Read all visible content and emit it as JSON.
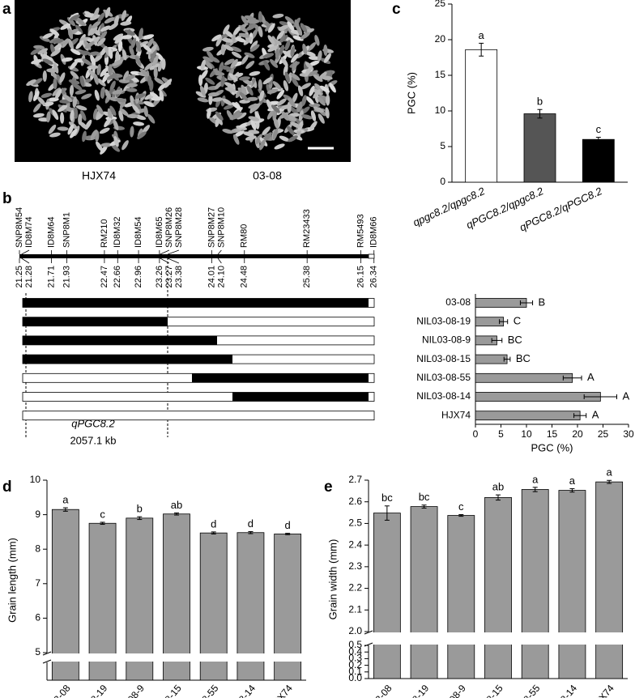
{
  "panel_labels": [
    "a",
    "b",
    "c",
    "d",
    "e"
  ],
  "photo": {
    "labels": [
      "HJX74",
      "03-08"
    ]
  },
  "genetic_map": {
    "markers": [
      {
        "name": "SNP8M54",
        "position": "21.25"
      },
      {
        "name": "ID8M74",
        "position": "21.28"
      },
      {
        "name": "ID8M64",
        "position": "21.71"
      },
      {
        "name": "SNP8M1",
        "position": "21.93"
      },
      {
        "name": "RM210",
        "position": "22.47"
      },
      {
        "name": "ID8M32",
        "position": "22.66"
      },
      {
        "name": "ID8M54",
        "position": "22.96"
      },
      {
        "name": "ID8M65",
        "position": "23.26"
      },
      {
        "name": "SNP8M26",
        "position": "23.27"
      },
      {
        "name": "SNP8M28",
        "position": "23.38"
      },
      {
        "name": "SNP8M27",
        "position": "24.01"
      },
      {
        "name": "SNP8M10",
        "position": "24.10"
      },
      {
        "name": "RM80",
        "position": "24.48"
      },
      {
        "name": "RM23433",
        "position": "25.38"
      },
      {
        "name": "RM5493",
        "position": "26.15"
      },
      {
        "name": "ID8M66",
        "position": "26.34"
      }
    ],
    "qtl": "qPGC8.2",
    "interval": "2057.1 kb"
  },
  "chart_data": [
    {
      "type": "bar",
      "categories": [
        "qpgc8.2/qpgc8.2",
        "qPGC8.2/qpgc8.2",
        "qPGC8.2/qPGC8.2"
      ],
      "values": [
        18.6,
        9.6,
        6.0
      ],
      "errors": [
        0.9,
        0.6,
        0.3
      ],
      "significance": [
        "a",
        "b",
        "c"
      ],
      "colors": [
        "#ffffff",
        "#555555",
        "#000000"
      ],
      "ylabel": "PGC (%)",
      "ylim": [
        0,
        25
      ],
      "yticks": [
        0,
        5,
        10,
        15,
        20,
        25
      ]
    },
    {
      "type": "hbar",
      "categories": [
        "03-08",
        "NIL03-08-19",
        "NIL03-08-9",
        "NIL03-08-15",
        "NIL03-08-55",
        "NIL03-08-14",
        "HJX74"
      ],
      "values": [
        10.0,
        5.5,
        4.2,
        6.2,
        19.0,
        24.5,
        20.5
      ],
      "errors": [
        1.2,
        0.8,
        1.0,
        0.6,
        1.8,
        3.2,
        1.2
      ],
      "significance": [
        "B",
        "C",
        "BC",
        "BC",
        "A",
        "A",
        "A"
      ],
      "color": "#9a9a9a",
      "xlabel": "PGC (%)",
      "xlim": [
        0,
        30
      ],
      "xticks": [
        0,
        5,
        10,
        15,
        20,
        25,
        30
      ]
    },
    {
      "type": "bar",
      "categories": [
        "03-08",
        "NIL03-08-19",
        "NIL03-08-9",
        "NIL03-08-15",
        "NIL03-08-55",
        "NIL03-08-14",
        "HJX74"
      ],
      "values": [
        9.15,
        8.75,
        8.9,
        9.02,
        8.47,
        8.48,
        8.44
      ],
      "errors": [
        0.05,
        0.03,
        0.04,
        0.03,
        0.03,
        0.03,
        0.02
      ],
      "significance": [
        "a",
        "c",
        "b",
        "ab",
        "d",
        "d",
        "d"
      ],
      "color": "#9a9a9a",
      "ylabel": "Grain length (mm)",
      "y_segments": [
        [
          0,
          5
        ],
        [
          5,
          10
        ]
      ],
      "yticks": [
        5,
        6,
        7,
        8,
        9,
        10
      ]
    },
    {
      "type": "bar",
      "categories": [
        "03-08",
        "NIL03-08-19",
        "NIL03-08-9",
        "NIL03-08-15",
        "NIL03-08-55",
        "NIL03-08-14",
        "HJX74"
      ],
      "values": [
        2.548,
        2.578,
        2.537,
        2.62,
        2.657,
        2.653,
        2.692
      ],
      "errors": [
        0.033,
        0.007,
        0.004,
        0.012,
        0.01,
        0.008,
        0.007
      ],
      "significance": [
        "bc",
        "bc",
        "c",
        "ab",
        "a",
        "a",
        "a"
      ],
      "color": "#9a9a9a",
      "ylabel": "Grain width (mm)",
      "y_segments": [
        [
          0,
          0.5
        ],
        [
          2.0,
          2.7
        ]
      ],
      "yticks": [
        {
          "value": 0,
          "label": "0.0"
        },
        0.1,
        0.2,
        0.3,
        0.4,
        0.5,
        {
          "value": 2,
          "label": "2.0"
        },
        2.1,
        2.2,
        2.3,
        2.4,
        2.5,
        2.6,
        2.7
      ]
    }
  ]
}
